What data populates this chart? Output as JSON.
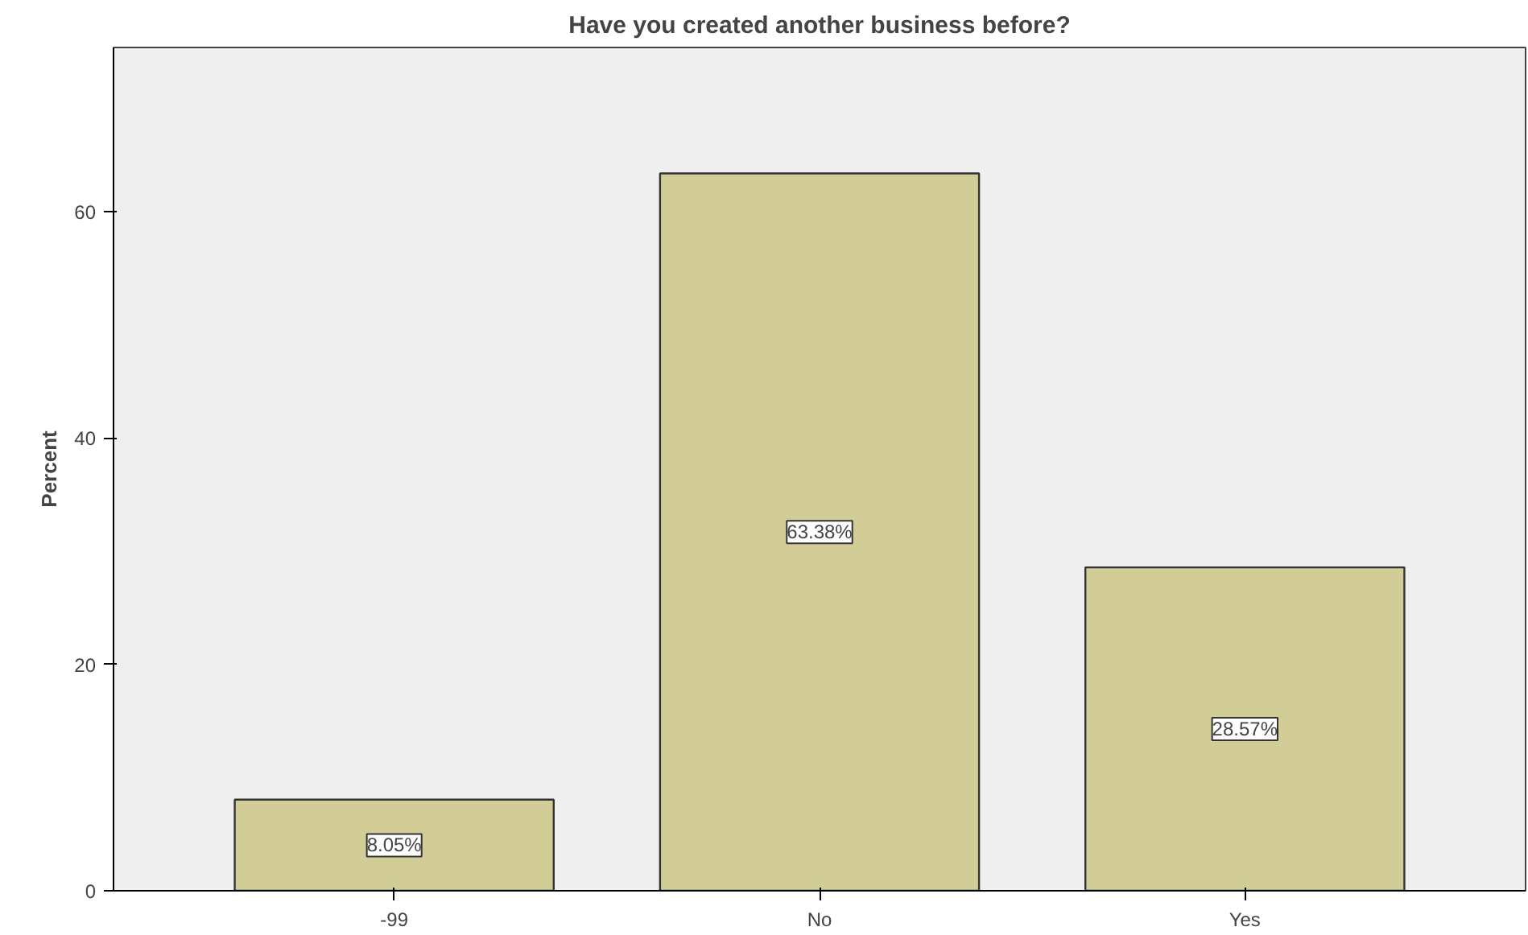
{
  "chart_data": {
    "type": "bar",
    "title": "Have you created another business before?",
    "ylabel": "Percent",
    "categories": [
      "-99",
      "No",
      "Yes"
    ],
    "values": [
      8.05,
      63.38,
      28.57
    ],
    "value_labels": [
      "8.05%",
      "63.38%",
      "28.57%"
    ],
    "color": "#d2cd96",
    "ylim": [
      0,
      74.5
    ],
    "yticks": [
      0,
      20,
      40,
      60
    ],
    "grid": false
  }
}
